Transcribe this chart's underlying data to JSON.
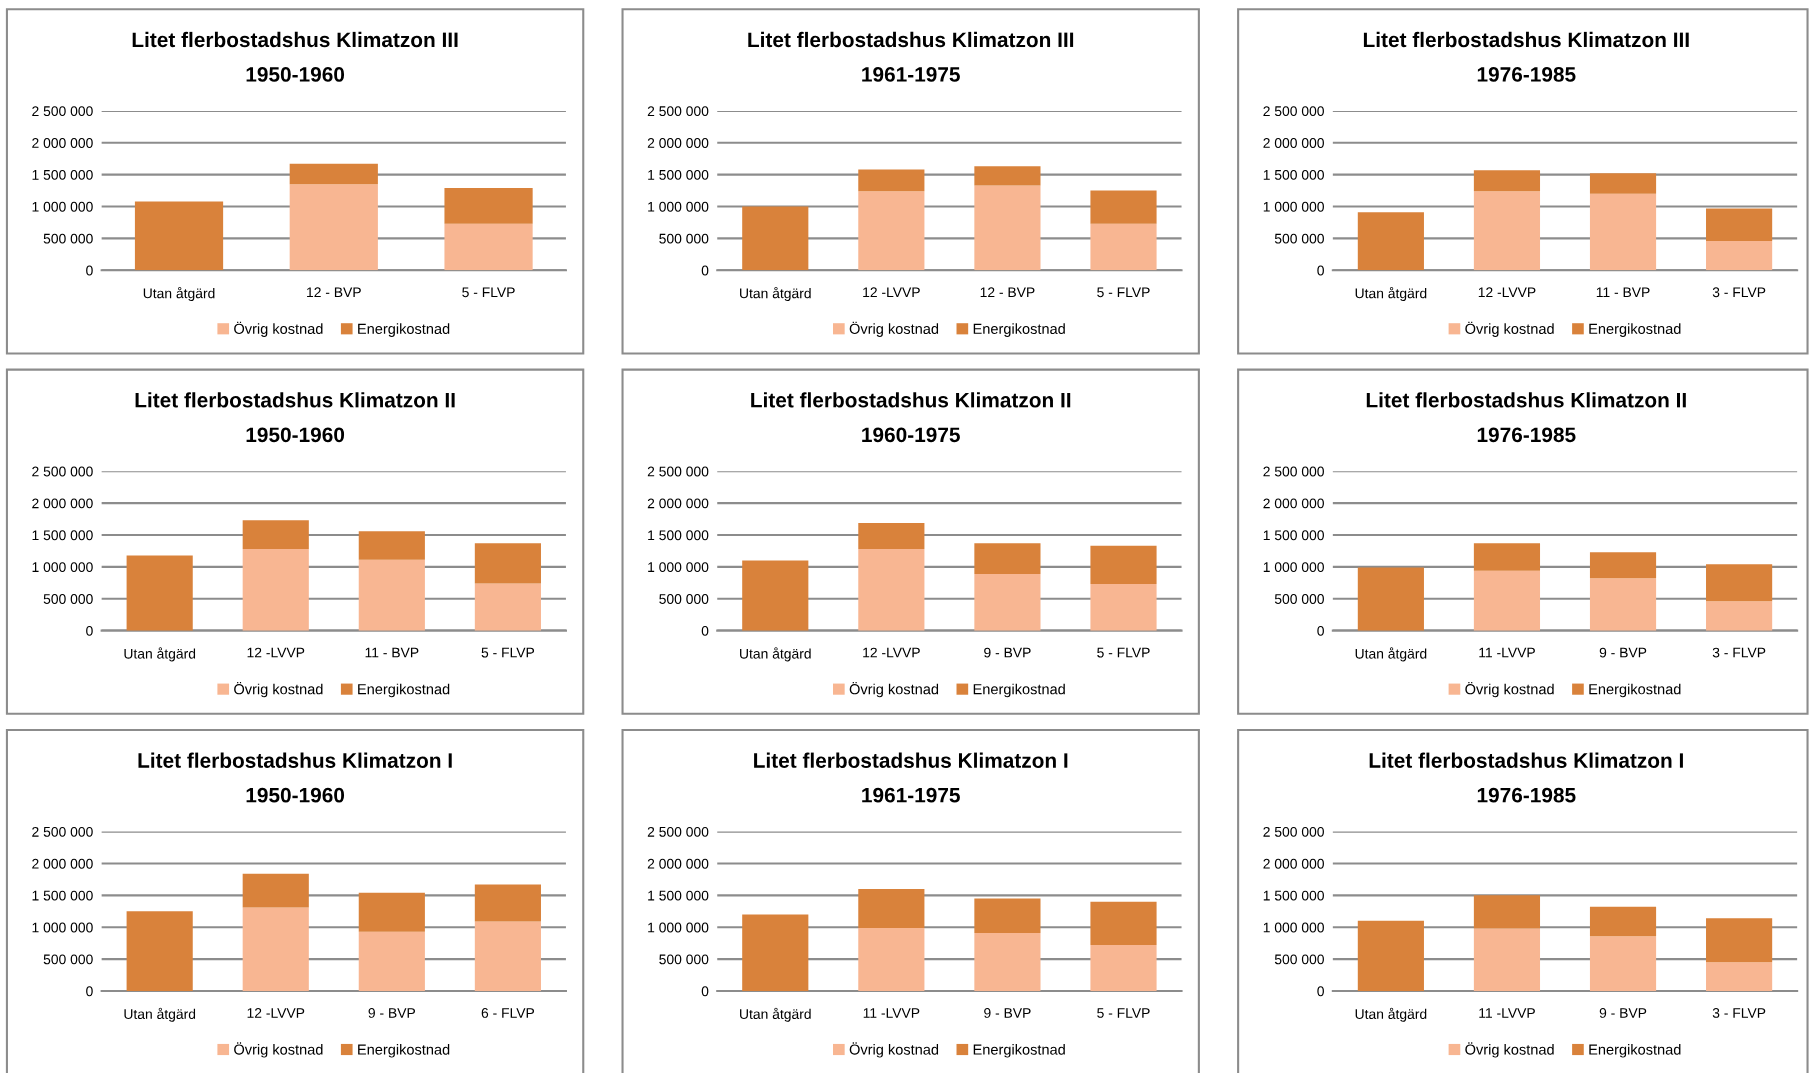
{
  "chart_data": [
    {
      "type": "bar",
      "title": "Litet flerbostadshus Klimatzon III",
      "subtitle": "1950-1960",
      "categories": [
        "Utan åtgärd",
        "12 - BVP",
        "5 - FLVP"
      ],
      "stacked": true,
      "grid": "y",
      "legend": "bottom",
      "ylim": [
        0,
        2500000
      ],
      "yticks": [
        {
          "value": 0,
          "label": "0"
        },
        {
          "value": 500000,
          "label": "500 000"
        },
        {
          "value": 1000000,
          "label": "1 000 000"
        },
        {
          "value": 1500000,
          "label": "1 500 000"
        },
        {
          "value": 2000000,
          "label": "2 000 000"
        },
        {
          "value": 2500000,
          "label": "2 500 000"
        }
      ],
      "series": [
        {
          "name": "Övrig kostnad",
          "color": "#f8b692",
          "values": [
            0,
            1350000,
            730000
          ]
        },
        {
          "name": "Energikostnad",
          "color": "#d9823b",
          "values": [
            1080000,
            320000,
            560000
          ]
        }
      ]
    },
    {
      "type": "bar",
      "title": "Litet flerbostadshus Klimatzon III",
      "subtitle": "1961-1975",
      "categories": [
        "Utan åtgärd",
        "12 -LVVP",
        "12 - BVP",
        "5 - FLVP"
      ],
      "stacked": true,
      "grid": "y",
      "legend": "bottom",
      "ylim": [
        0,
        2500000
      ],
      "yticks": [
        {
          "value": 0,
          "label": "0"
        },
        {
          "value": 500000,
          "label": "500 000"
        },
        {
          "value": 1000000,
          "label": "1 000 000"
        },
        {
          "value": 1500000,
          "label": "1 500 000"
        },
        {
          "value": 2000000,
          "label": "2 000 000"
        },
        {
          "value": 2500000,
          "label": "2 500 000"
        }
      ],
      "series": [
        {
          "name": "Övrig kostnad",
          "color": "#f8b692",
          "values": [
            0,
            1240000,
            1330000,
            730000
          ]
        },
        {
          "name": "Energikostnad",
          "color": "#d9823b",
          "values": [
            1000000,
            340000,
            300000,
            520000
          ]
        }
      ]
    },
    {
      "type": "bar",
      "title": "Litet flerbostadshus Klimatzon III",
      "subtitle": "1976-1985",
      "categories": [
        "Utan åtgärd",
        "12 -LVVP",
        "11 - BVP",
        "3 - FLVP"
      ],
      "stacked": true,
      "grid": "y",
      "legend": "bottom",
      "ylim": [
        0,
        2500000
      ],
      "yticks": [
        {
          "value": 0,
          "label": "0"
        },
        {
          "value": 500000,
          "label": "500 000"
        },
        {
          "value": 1000000,
          "label": "1 000 000"
        },
        {
          "value": 1500000,
          "label": "1 500 000"
        },
        {
          "value": 2000000,
          "label": "2 000 000"
        },
        {
          "value": 2500000,
          "label": "2 500 000"
        }
      ],
      "series": [
        {
          "name": "Övrig kostnad",
          "color": "#f8b692",
          "values": [
            0,
            1240000,
            1200000,
            460000
          ]
        },
        {
          "name": "Energikostnad",
          "color": "#d9823b",
          "values": [
            910000,
            330000,
            320000,
            510000
          ]
        }
      ]
    },
    {
      "type": "bar",
      "title": "Litet flerbostadshus Klimatzon II",
      "subtitle": "1950-1960",
      "categories": [
        "Utan åtgärd",
        "12 -LVVP",
        "11 - BVP",
        "5 - FLVP"
      ],
      "stacked": true,
      "grid": "y",
      "legend": "bottom",
      "ylim": [
        0,
        2500000
      ],
      "yticks": [
        {
          "value": 0,
          "label": "0"
        },
        {
          "value": 500000,
          "label": "500 000"
        },
        {
          "value": 1000000,
          "label": "1 000 000"
        },
        {
          "value": 1500000,
          "label": "1 500 000"
        },
        {
          "value": 2000000,
          "label": "2 000 000"
        },
        {
          "value": 2500000,
          "label": "2 500 000"
        }
      ],
      "series": [
        {
          "name": "Övrig kostnad",
          "color": "#f8b692",
          "values": [
            0,
            1280000,
            1110000,
            740000
          ]
        },
        {
          "name": "Energikostnad",
          "color": "#d9823b",
          "values": [
            1180000,
            450000,
            450000,
            630000
          ]
        }
      ]
    },
    {
      "type": "bar",
      "title": "Litet flerbostadshus Klimatzon II",
      "subtitle": "1960-1975",
      "categories": [
        "Utan åtgärd",
        "12 -LVVP",
        "9 - BVP",
        "5 - FLVP"
      ],
      "stacked": true,
      "grid": "y",
      "legend": "bottom",
      "ylim": [
        0,
        2500000
      ],
      "yticks": [
        {
          "value": 0,
          "label": "0"
        },
        {
          "value": 500000,
          "label": "500 000"
        },
        {
          "value": 1000000,
          "label": "1 000 000"
        },
        {
          "value": 1500000,
          "label": "1 500 000"
        },
        {
          "value": 2000000,
          "label": "2 000 000"
        },
        {
          "value": 2500000,
          "label": "2 500 000"
        }
      ],
      "series": [
        {
          "name": "Övrig kostnad",
          "color": "#f8b692",
          "values": [
            0,
            1280000,
            890000,
            730000
          ]
        },
        {
          "name": "Energikostnad",
          "color": "#d9823b",
          "values": [
            1100000,
            410000,
            480000,
            600000
          ]
        }
      ]
    },
    {
      "type": "bar",
      "title": "Litet flerbostadshus Klimatzon II",
      "subtitle": "1976-1985",
      "categories": [
        "Utan åtgärd",
        "11 -LVVP",
        "9 - BVP",
        "3 - FLVP"
      ],
      "stacked": true,
      "grid": "y",
      "legend": "bottom",
      "ylim": [
        0,
        2500000
      ],
      "yticks": [
        {
          "value": 0,
          "label": "0"
        },
        {
          "value": 500000,
          "label": "500 000"
        },
        {
          "value": 1000000,
          "label": "1 000 000"
        },
        {
          "value": 1500000,
          "label": "1 500 000"
        },
        {
          "value": 2000000,
          "label": "2 000 000"
        },
        {
          "value": 2500000,
          "label": "2 500 000"
        }
      ],
      "series": [
        {
          "name": "Övrig kostnad",
          "color": "#f8b692",
          "values": [
            0,
            940000,
            820000,
            460000
          ]
        },
        {
          "name": "Energikostnad",
          "color": "#d9823b",
          "values": [
            990000,
            430000,
            410000,
            580000
          ]
        }
      ]
    },
    {
      "type": "bar",
      "title": "Litet flerbostadshus Klimatzon I",
      "subtitle": "1950-1960",
      "categories": [
        "Utan åtgärd",
        "12 -LVVP",
        "9 - BVP",
        "6 - FLVP"
      ],
      "stacked": true,
      "grid": "y",
      "legend": "bottom",
      "ylim": [
        0,
        2500000
      ],
      "yticks": [
        {
          "value": 0,
          "label": "0"
        },
        {
          "value": 500000,
          "label": "500 000"
        },
        {
          "value": 1000000,
          "label": "1 000 000"
        },
        {
          "value": 1500000,
          "label": "1 500 000"
        },
        {
          "value": 2000000,
          "label": "2 000 000"
        },
        {
          "value": 2500000,
          "label": "2 500 000"
        }
      ],
      "series": [
        {
          "name": "Övrig kostnad",
          "color": "#f8b692",
          "values": [
            0,
            1310000,
            930000,
            1090000
          ]
        },
        {
          "name": "Energikostnad",
          "color": "#d9823b",
          "values": [
            1250000,
            530000,
            610000,
            580000
          ]
        }
      ]
    },
    {
      "type": "bar",
      "title": "Litet flerbostadshus Klimatzon I",
      "subtitle": "1961-1975",
      "categories": [
        "Utan åtgärd",
        "11 -LVVP",
        "9 - BVP",
        "5 - FLVP"
      ],
      "stacked": true,
      "grid": "y",
      "legend": "bottom",
      "ylim": [
        0,
        2500000
      ],
      "yticks": [
        {
          "value": 0,
          "label": "0"
        },
        {
          "value": 500000,
          "label": "500 000"
        },
        {
          "value": 1000000,
          "label": "1 000 000"
        },
        {
          "value": 1500000,
          "label": "1 500 000"
        },
        {
          "value": 2000000,
          "label": "2 000 000"
        },
        {
          "value": 2500000,
          "label": "2 500 000"
        }
      ],
      "series": [
        {
          "name": "Övrig kostnad",
          "color": "#f8b692",
          "values": [
            0,
            990000,
            910000,
            720000
          ]
        },
        {
          "name": "Energikostnad",
          "color": "#d9823b",
          "values": [
            1200000,
            610000,
            540000,
            680000
          ]
        }
      ]
    },
    {
      "type": "bar",
      "title": "Litet flerbostadshus Klimatzon I",
      "subtitle": "1976-1985",
      "categories": [
        "Utan åtgärd",
        "11 -LVVP",
        "9 - BVP",
        "3 - FLVP"
      ],
      "stacked": true,
      "grid": "y",
      "legend": "bottom",
      "ylim": [
        0,
        2500000
      ],
      "yticks": [
        {
          "value": 0,
          "label": "0"
        },
        {
          "value": 500000,
          "label": "500 000"
        },
        {
          "value": 1000000,
          "label": "1 000 000"
        },
        {
          "value": 1500000,
          "label": "1 500 000"
        },
        {
          "value": 2000000,
          "label": "2 000 000"
        },
        {
          "value": 2500000,
          "label": "2 500 000"
        }
      ],
      "series": [
        {
          "name": "Övrig kostnad",
          "color": "#f8b692",
          "values": [
            0,
            980000,
            860000,
            450000
          ]
        },
        {
          "name": "Energikostnad",
          "color": "#d9823b",
          "values": [
            1100000,
            520000,
            460000,
            690000
          ]
        }
      ]
    }
  ]
}
